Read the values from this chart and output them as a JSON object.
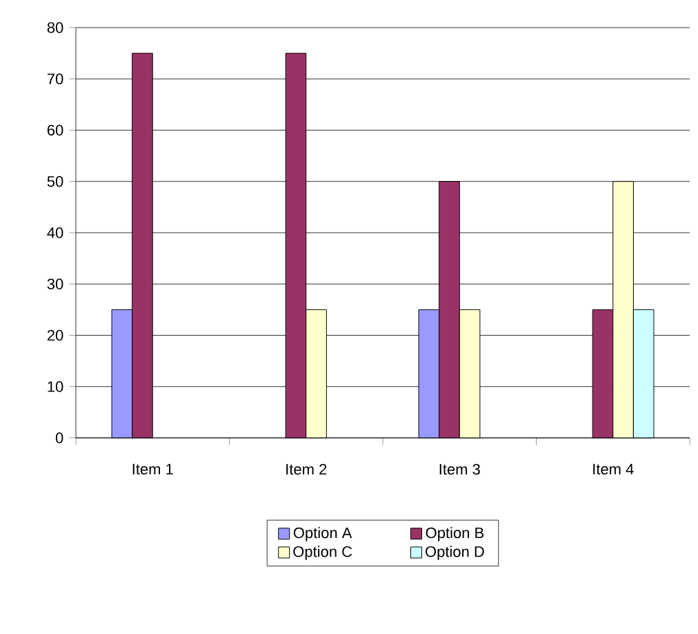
{
  "chart_data": {
    "type": "bar",
    "categories": [
      "Item 1",
      "Item 2",
      "Item 3",
      "Item 4"
    ],
    "series": [
      {
        "name": "Option A",
        "color": "#9999ff",
        "values": [
          25,
          null,
          25,
          null
        ]
      },
      {
        "name": "Option B",
        "color": "#993366",
        "values": [
          75,
          75,
          50,
          25
        ]
      },
      {
        "name": "Option C",
        "color": "#ffffcc",
        "values": [
          null,
          25,
          25,
          50
        ]
      },
      {
        "name": "Option D",
        "color": "#ccffff",
        "values": [
          null,
          null,
          null,
          25
        ]
      }
    ],
    "ylim": [
      0,
      80
    ],
    "yticks": [
      0,
      10,
      20,
      30,
      40,
      50,
      60,
      70,
      80
    ],
    "grid": "y",
    "legend": "bottom"
  }
}
